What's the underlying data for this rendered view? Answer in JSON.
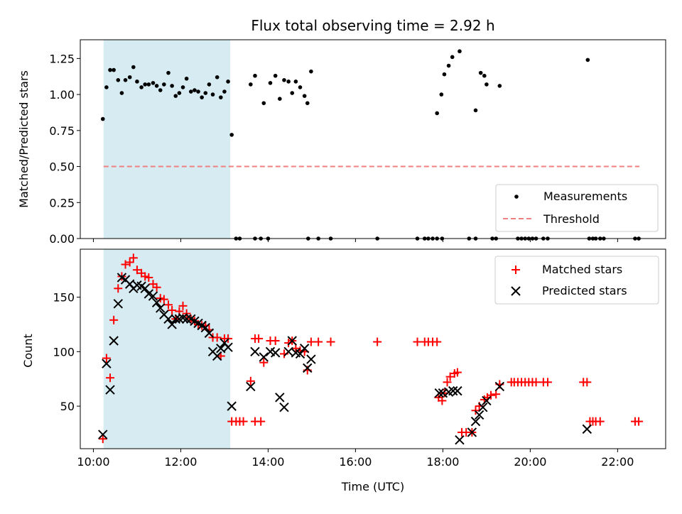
{
  "chart_data": [
    {
      "type": "scatter",
      "title": "Flux total observing time = 2.92 h",
      "xlabel": "",
      "ylabel": "Matched/Predicted stars",
      "x_unit": "hours UTC",
      "xlim": [
        "09:42",
        "23:06"
      ],
      "ylim": [
        0,
        1.38
      ],
      "yticks": [
        "0.00",
        "0.25",
        "0.50",
        "0.75",
        "1.00",
        "1.25"
      ],
      "legend_position": "lower-right",
      "highlight_span": {
        "start": "10:14",
        "end": "13:08",
        "color": "#add8e6"
      },
      "series": [
        {
          "name": "Measurements",
          "marker": "dot",
          "color": "#000000",
          "points": [
            [
              "10:13",
              0.83
            ],
            [
              "10:18",
              1.05
            ],
            [
              "10:23",
              1.17
            ],
            [
              "10:28",
              1.17
            ],
            [
              "10:34",
              1.1
            ],
            [
              "10:39",
              1.01
            ],
            [
              "10:44",
              1.1
            ],
            [
              "10:50",
              1.12
            ],
            [
              "10:55",
              1.19
            ],
            [
              "11:00",
              1.09
            ],
            [
              "11:06",
              1.05
            ],
            [
              "11:11",
              1.07
            ],
            [
              "11:16",
              1.07
            ],
            [
              "11:22",
              1.08
            ],
            [
              "11:27",
              1.06
            ],
            [
              "11:32",
              1.03
            ],
            [
              "11:37",
              1.07
            ],
            [
              "11:43",
              1.15
            ],
            [
              "11:48",
              1.06
            ],
            [
              "11:53",
              0.99
            ],
            [
              "11:58",
              1.01
            ],
            [
              "12:03",
              1.05
            ],
            [
              "12:08",
              1.11
            ],
            [
              "12:14",
              1.02
            ],
            [
              "12:19",
              1.03
            ],
            [
              "12:24",
              1.02
            ],
            [
              "12:29",
              0.98
            ],
            [
              "12:34",
              1.01
            ],
            [
              "12:39",
              1.07
            ],
            [
              "12:44",
              1.0
            ],
            [
              "12:50",
              1.12
            ],
            [
              "12:55",
              0.98
            ],
            [
              "13:00",
              1.02
            ],
            [
              "13:05",
              1.09
            ],
            [
              "13:10",
              0.72
            ],
            [
              "13:16",
              0
            ],
            [
              "13:21",
              0
            ],
            [
              "13:42",
              0
            ],
            [
              "13:50",
              0
            ],
            [
              "13:36",
              1.07
            ],
            [
              "13:42",
              1.13
            ],
            [
              "13:54",
              0.94
            ],
            [
              "14:00",
              0
            ],
            [
              "14:03",
              1.08
            ],
            [
              "14:10",
              1.13
            ],
            [
              "14:16",
              0.97
            ],
            [
              "14:22",
              1.1
            ],
            [
              "14:28",
              1.09
            ],
            [
              "14:33",
              1.01
            ],
            [
              "14:38",
              1.09
            ],
            [
              "14:44",
              1.05
            ],
            [
              "14:50",
              0.99
            ],
            [
              "14:54",
              0.94
            ],
            [
              "14:59",
              1.16
            ],
            [
              "14:55",
              0
            ],
            [
              "15:09",
              0
            ],
            [
              "15:26",
              0
            ],
            [
              "16:30",
              0
            ],
            [
              "17:25",
              0
            ],
            [
              "17:35",
              0
            ],
            [
              "17:40",
              0
            ],
            [
              "17:46",
              0
            ],
            [
              "17:52",
              0
            ],
            [
              "17:59",
              0
            ],
            [
              "17:52",
              0.87
            ],
            [
              "17:58",
              1.0
            ],
            [
              "18:02",
              1.14
            ],
            [
              "18:08",
              1.2
            ],
            [
              "18:13",
              1.26
            ],
            [
              "18:23",
              1.3
            ],
            [
              "18:36",
              0
            ],
            [
              "18:45",
              0
            ],
            [
              "18:45",
              0.89
            ],
            [
              "18:52",
              1.15
            ],
            [
              "18:57",
              1.13
            ],
            [
              "19:00",
              1.07
            ],
            [
              "19:08",
              0
            ],
            [
              "19:13",
              0
            ],
            [
              "19:18",
              1.06
            ],
            [
              "19:43",
              0
            ],
            [
              "19:48",
              0
            ],
            [
              "19:53",
              0
            ],
            [
              "19:58",
              0
            ],
            [
              "20:03",
              0
            ],
            [
              "20:08",
              0
            ],
            [
              "20:18",
              0
            ],
            [
              "20:24",
              0
            ],
            [
              "21:21",
              0
            ],
            [
              "21:26",
              0
            ],
            [
              "21:30",
              0
            ],
            [
              "21:36",
              0
            ],
            [
              "21:41",
              0
            ],
            [
              "21:19",
              1.24
            ],
            [
              "22:24",
              0
            ],
            [
              "22:29",
              0
            ]
          ]
        },
        {
          "name": "Threshold",
          "marker": "dashed-line",
          "color": "#f08080",
          "points": [
            [
              "10:14",
              0.5
            ],
            [
              "22:30",
              0.5
            ]
          ]
        }
      ]
    },
    {
      "type": "scatter",
      "title": "",
      "xlabel": "Time (UTC)",
      "ylabel": "Count",
      "x_unit": "hours UTC",
      "xlim": [
        "09:42",
        "23:06"
      ],
      "ylim": [
        11,
        194
      ],
      "yticks": [
        "50",
        "100",
        "150"
      ],
      "xticks": [
        "10:00",
        "12:00",
        "14:00",
        "16:00",
        "18:00",
        "20:00",
        "22:00"
      ],
      "legend_position": "top-right",
      "highlight_span": {
        "start": "10:14",
        "end": "13:08",
        "color": "#add8e6"
      },
      "series": [
        {
          "name": "Matched stars",
          "marker": "plus",
          "color": "#ff0000",
          "points": [
            [
              "10:13",
              20
            ],
            [
              "10:18",
              94
            ],
            [
              "10:23",
              76
            ],
            [
              "10:28",
              129
            ],
            [
              "10:34",
              158
            ],
            [
              "10:39",
              169
            ],
            [
              "10:44",
              180
            ],
            [
              "10:50",
              182
            ],
            [
              "10:55",
              186
            ],
            [
              "11:00",
              175
            ],
            [
              "11:06",
              172
            ],
            [
              "11:11",
              169
            ],
            [
              "11:16",
              168
            ],
            [
              "11:22",
              162
            ],
            [
              "11:27",
              159
            ],
            [
              "11:32",
              149
            ],
            [
              "11:37",
              148
            ],
            [
              "11:43",
              143
            ],
            [
              "11:48",
              138
            ],
            [
              "11:53",
              130
            ],
            [
              "11:58",
              137
            ],
            [
              "12:03",
              142
            ],
            [
              "12:08",
              135
            ],
            [
              "12:14",
              130
            ],
            [
              "12:19",
              128
            ],
            [
              "12:24",
              125
            ],
            [
              "12:29",
              124
            ],
            [
              "12:34",
              124
            ],
            [
              "12:39",
              120
            ],
            [
              "12:44",
              113
            ],
            [
              "12:50",
              113
            ],
            [
              "12:55",
              96
            ],
            [
              "13:00",
              112
            ],
            [
              "13:05",
              112
            ],
            [
              "13:10",
              36
            ],
            [
              "13:16",
              36
            ],
            [
              "13:21",
              36
            ],
            [
              "13:26",
              36
            ],
            [
              "13:42",
              36
            ],
            [
              "13:50",
              36
            ],
            [
              "13:36",
              73
            ],
            [
              "13:42",
              112
            ],
            [
              "13:47",
              112
            ],
            [
              "13:54",
              90
            ],
            [
              "14:03",
              110
            ],
            [
              "14:10",
              110
            ],
            [
              "14:22",
              98
            ],
            [
              "14:28",
              108
            ],
            [
              "14:33",
              110
            ],
            [
              "14:38",
              103
            ],
            [
              "14:44",
              101
            ],
            [
              "14:50",
              100
            ],
            [
              "14:54",
              83
            ],
            [
              "14:59",
              109
            ],
            [
              "15:09",
              109
            ],
            [
              "15:26",
              109
            ],
            [
              "16:30",
              109
            ],
            [
              "17:25",
              109
            ],
            [
              "17:35",
              109
            ],
            [
              "17:40",
              109
            ],
            [
              "17:46",
              109
            ],
            [
              "17:52",
              109
            ],
            [
              "17:59",
              55
            ],
            [
              "17:54",
              58
            ],
            [
              "18:02",
              62
            ],
            [
              "18:06",
              72
            ],
            [
              "18:10",
              77
            ],
            [
              "18:16",
              80
            ],
            [
              "18:20",
              81
            ],
            [
              "18:26",
              26
            ],
            [
              "18:32",
              26
            ],
            [
              "18:40",
              26
            ],
            [
              "18:45",
              46
            ],
            [
              "18:50",
              50
            ],
            [
              "18:57",
              56
            ],
            [
              "19:01",
              58
            ],
            [
              "19:06",
              60
            ],
            [
              "19:13",
              61
            ],
            [
              "19:18",
              70
            ],
            [
              "19:34",
              72
            ],
            [
              "19:38",
              72
            ],
            [
              "19:43",
              72
            ],
            [
              "19:48",
              72
            ],
            [
              "19:53",
              72
            ],
            [
              "19:58",
              72
            ],
            [
              "20:03",
              72
            ],
            [
              "20:08",
              72
            ],
            [
              "20:18",
              72
            ],
            [
              "20:24",
              72
            ],
            [
              "21:13",
              72
            ],
            [
              "21:18",
              72
            ],
            [
              "21:22",
              36
            ],
            [
              "21:26",
              36
            ],
            [
              "21:30",
              36
            ],
            [
              "21:36",
              36
            ],
            [
              "22:24",
              36
            ],
            [
              "22:29",
              36
            ]
          ]
        },
        {
          "name": "Predicted stars",
          "marker": "x",
          "color": "#000000",
          "points": [
            [
              "10:13",
              24
            ],
            [
              "10:18",
              89
            ],
            [
              "10:23",
              65
            ],
            [
              "10:28",
              110
            ],
            [
              "10:34",
              144
            ],
            [
              "10:39",
              168
            ],
            [
              "10:44",
              166
            ],
            [
              "10:50",
              162
            ],
            [
              "10:55",
              158
            ],
            [
              "11:00",
              161
            ],
            [
              "11:06",
              160
            ],
            [
              "11:11",
              158
            ],
            [
              "11:16",
              153
            ],
            [
              "11:22",
              151
            ],
            [
              "11:27",
              145
            ],
            [
              "11:32",
              140
            ],
            [
              "11:37",
              134
            ],
            [
              "11:43",
              130
            ],
            [
              "11:48",
              125
            ],
            [
              "11:53",
              130
            ],
            [
              "11:58",
              130
            ],
            [
              "12:03",
              131
            ],
            [
              "12:08",
              130
            ],
            [
              "12:14",
              130
            ],
            [
              "12:19",
              128
            ],
            [
              "12:24",
              126
            ],
            [
              "12:29",
              124
            ],
            [
              "12:34",
              122
            ],
            [
              "12:39",
              117
            ],
            [
              "12:44",
              100
            ],
            [
              "12:50",
              96
            ],
            [
              "12:55",
              103
            ],
            [
              "13:00",
              108
            ],
            [
              "13:05",
              104
            ],
            [
              "13:10",
              50
            ],
            [
              "13:36",
              68
            ],
            [
              "13:42",
              100
            ],
            [
              "13:54",
              95
            ],
            [
              "14:03",
              100
            ],
            [
              "14:10",
              99
            ],
            [
              "14:16",
              58
            ],
            [
              "14:22",
              49
            ],
            [
              "14:28",
              100
            ],
            [
              "14:33",
              110
            ],
            [
              "14:38",
              99
            ],
            [
              "14:44",
              98
            ],
            [
              "14:50",
              103
            ],
            [
              "14:54",
              85
            ],
            [
              "14:59",
              93
            ],
            [
              "17:55",
              62
            ],
            [
              "18:00",
              62
            ],
            [
              "18:08",
              63
            ],
            [
              "18:14",
              64
            ],
            [
              "18:20",
              64
            ],
            [
              "18:23",
              19
            ],
            [
              "18:40",
              26
            ],
            [
              "18:45",
              36
            ],
            [
              "18:50",
              42
            ],
            [
              "18:55",
              49
            ],
            [
              "19:00",
              55
            ],
            [
              "19:18",
              68
            ],
            [
              "21:18",
              29
            ]
          ]
        }
      ]
    }
  ]
}
